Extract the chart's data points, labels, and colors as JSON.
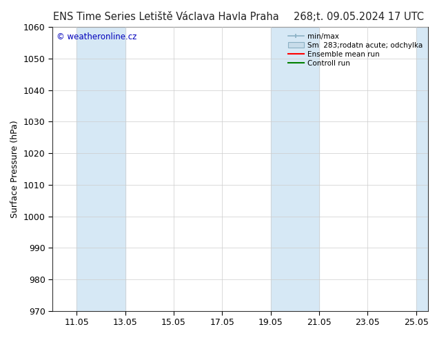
{
  "title_left": "ENS Time Series Letiště Václava Havla Praha",
  "title_right": "268;t. 09.05.2024 17 UTC",
  "ylabel": "Surface Pressure (hPa)",
  "ylim": [
    970,
    1060
  ],
  "yticks": [
    970,
    980,
    990,
    1000,
    1010,
    1020,
    1030,
    1040,
    1050,
    1060
  ],
  "xlim_start": "2024-05-10",
  "xlim_end": "2024-05-25.5",
  "xtick_labels": [
    "11.05",
    "13.05",
    "15.05",
    "17.05",
    "19.05",
    "21.05",
    "23.05",
    "25.05"
  ],
  "xtick_positions": [
    1,
    3,
    5,
    7,
    9,
    11,
    13,
    15
  ],
  "shaded_bands": [
    {
      "start": 1,
      "end": 3
    },
    {
      "start": 9,
      "end": 11
    },
    {
      "start": 15,
      "end": 16
    }
  ],
  "band_color": "#d6e8f5",
  "watermark_text": "© weatheronline.cz",
  "watermark_color": "#0000bb",
  "legend_labels": [
    "min/max",
    "Sm  283;rodatn acute; odchylka",
    "Ensemble mean run",
    "Controll run"
  ],
  "legend_colors": [
    "#b0c8d8",
    "#c8dcea",
    "#ff0000",
    "#008000"
  ],
  "background_color": "#ffffff",
  "plot_bg_color": "#ffffff",
  "grid_color": "#cccccc",
  "title_fontsize": 10.5,
  "axis_fontsize": 9,
  "tick_fontsize": 9,
  "xlim": [
    0,
    15.5
  ]
}
